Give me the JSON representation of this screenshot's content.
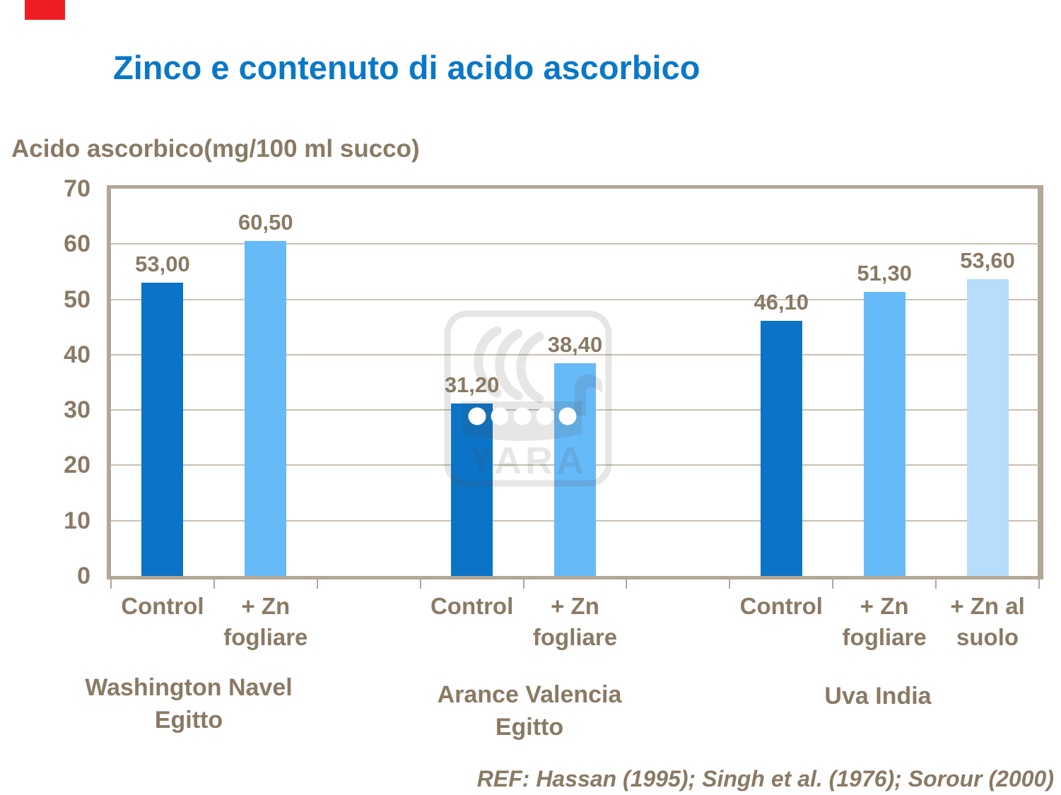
{
  "decor": {
    "red_mark": "red-corner-mark"
  },
  "colors": {
    "control": "#0b74c6",
    "zn_fogliare": "#66baf8",
    "zn_suolo": "#b6ddfb",
    "title_accent": "#0a78c8",
    "text": "#8a7a64",
    "gridline": "#c9c0b0",
    "frame": "#b3a795",
    "red_mark": "#ee1c25"
  },
  "chart_data": {
    "type": "bar",
    "title": "Zinco e contenuto di acido ascorbico",
    "ylabel": "Acido ascorbico(mg/100 ml succo)",
    "xlabel": "",
    "ylim": [
      0,
      70
    ],
    "yticks": [
      0,
      10,
      20,
      30,
      40,
      50,
      60,
      70
    ],
    "grid": "horizontal",
    "legend": "none",
    "watermark": "YARA",
    "reference": "REF: Hassan (1995); Singh et al. (1976); Sorour (2000)",
    "groups": [
      {
        "group_label": [
          "Washington Navel",
          "Egitto"
        ],
        "bars": [
          {
            "category": [
              "Control"
            ],
            "value": 53.0,
            "value_label": "53,00",
            "color": "control"
          },
          {
            "category": [
              "+ Zn",
              "fogliare"
            ],
            "value": 60.5,
            "value_label": "60,50",
            "color": "zn_fogliare"
          }
        ]
      },
      {
        "group_label": [
          "Arance Valencia",
          "Egitto"
        ],
        "bars": [
          {
            "category": [
              "Control"
            ],
            "value": 31.2,
            "value_label": "31,20",
            "color": "control"
          },
          {
            "category": [
              "+ Zn",
              "fogliare"
            ],
            "value": 38.4,
            "value_label": "38,40",
            "color": "zn_fogliare"
          }
        ]
      },
      {
        "group_label": [
          "Uva India"
        ],
        "bars": [
          {
            "category": [
              "Control"
            ],
            "value": 46.1,
            "value_label": "46,10",
            "color": "control"
          },
          {
            "category": [
              "+ Zn",
              "fogliare"
            ],
            "value": 51.3,
            "value_label": "51,30",
            "color": "zn_fogliare"
          },
          {
            "category": [
              "+ Zn al",
              "suolo"
            ],
            "value": 53.6,
            "value_label": "53,60",
            "color": "zn_suolo"
          }
        ]
      }
    ]
  }
}
